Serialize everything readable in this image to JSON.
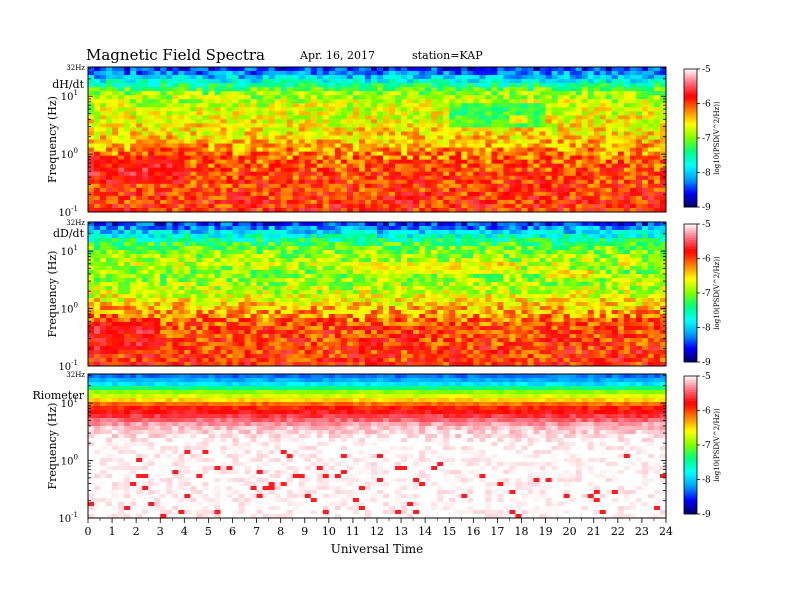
{
  "header": {
    "title": "Magnetic  Field  Spectra",
    "date": "Apr. 16, 2017",
    "station": "station=KAP"
  },
  "chart_data": {
    "type": "heatmap",
    "title": "Magnetic  Field  Spectra",
    "xlabel": "Universal Time",
    "xlim": [
      0,
      24
    ],
    "x_ticks": [
      "0",
      "1",
      "2",
      "3",
      "4",
      "5",
      "6",
      "7",
      "8",
      "9",
      "10",
      "11",
      "12",
      "13",
      "14",
      "15",
      "16",
      "17",
      "18",
      "19",
      "20",
      "21",
      "22",
      "23",
      "24"
    ],
    "y_scale": "log",
    "colorscale": {
      "label": "log10(PSD(V^2/Hz))",
      "range": [
        -9,
        -5
      ],
      "ticks": [
        "-5",
        "-6",
        "-7",
        "-8",
        "-9"
      ],
      "colors": [
        "#000060",
        "#0000ff",
        "#00a0ff",
        "#00ffff",
        "#00ff80",
        "#80ff00",
        "#ffff00",
        "#ff8000",
        "#ff0000",
        "#ff7080",
        "#ffffff"
      ]
    },
    "panels": [
      {
        "label": "dH/dt",
        "ylabel": "Frequency  (Hz)",
        "top_label": "32Hz",
        "ylim": [
          0.1,
          32
        ],
        "y_ticks": [
          {
            "base": "10",
            "exp": "1",
            "value": 10
          },
          {
            "base": "10",
            "exp": "0",
            "value": 1
          },
          {
            "base": "10",
            "exp": "-1",
            "value": 0.1
          }
        ],
        "profile": [
          [
            32,
            -8.6
          ],
          [
            20,
            -7.9
          ],
          [
            12,
            -7.0
          ],
          [
            9,
            -6.8
          ],
          [
            5,
            -6.7
          ],
          [
            2,
            -6.5
          ],
          [
            1,
            -6.2
          ],
          [
            0.5,
            -6.0
          ],
          [
            0.1,
            -5.9
          ]
        ],
        "events": [
          {
            "t": [
              0,
              4
            ],
            "f": [
              0.3,
              1
            ],
            "psd": -5.5
          },
          {
            "t": [
              2,
              5
            ],
            "f": [
              0.8,
              1.5
            ],
            "psd": -5.9
          },
          {
            "t": [
              15,
              19
            ],
            "f": [
              3,
              7
            ],
            "psd": -7.7
          },
          {
            "t": [
              17.5,
              18.2
            ],
            "f": [
              3.5,
              4.5
            ],
            "psd": -6.1
          }
        ]
      },
      {
        "label": "dD/dt",
        "ylabel": "Frequency  (Hz)",
        "top_label": "32Hz",
        "ylim": [
          0.1,
          32
        ],
        "y_ticks": [
          {
            "base": "10",
            "exp": "1",
            "value": 10
          },
          {
            "base": "10",
            "exp": "0",
            "value": 1
          },
          {
            "base": "10",
            "exp": "-1",
            "value": 0.1
          }
        ],
        "profile": [
          [
            32,
            -8.6
          ],
          [
            20,
            -7.8
          ],
          [
            12,
            -7.1
          ],
          [
            6,
            -6.8
          ],
          [
            4,
            -7.0
          ],
          [
            2,
            -6.8
          ],
          [
            1,
            -6.4
          ],
          [
            0.5,
            -6.0
          ],
          [
            0.1,
            -5.9
          ]
        ],
        "events": [
          {
            "t": [
              0,
              3
            ],
            "f": [
              0.2,
              0.6
            ],
            "psd": -5.5
          },
          {
            "t": [
              11,
              18
            ],
            "f": [
              4,
              6
            ],
            "psd": -6.4
          },
          {
            "t": [
              19,
              21
            ],
            "f": [
              3.5,
              4.5
            ],
            "psd": -6.1
          }
        ]
      },
      {
        "label": "Riometer",
        "ylabel": "Frequency  (Hz)",
        "top_label": "32Hz",
        "ylim": [
          0.1,
          32
        ],
        "y_ticks": [
          {
            "base": "10",
            "exp": "1",
            "value": 10
          },
          {
            "base": "10",
            "exp": "0",
            "value": 1
          },
          {
            "base": "10",
            "exp": "-1",
            "value": 0.1
          }
        ],
        "profile": [
          [
            32,
            -8.4
          ],
          [
            22,
            -8.0
          ],
          [
            16,
            -7.0
          ],
          [
            12,
            -6.6
          ],
          [
            9,
            -6.0
          ],
          [
            6,
            -5.6
          ],
          [
            4,
            -5.2
          ],
          [
            2,
            -5.0
          ],
          [
            1,
            -5.0
          ],
          [
            0.1,
            -5.0
          ]
        ],
        "events": []
      }
    ]
  }
}
